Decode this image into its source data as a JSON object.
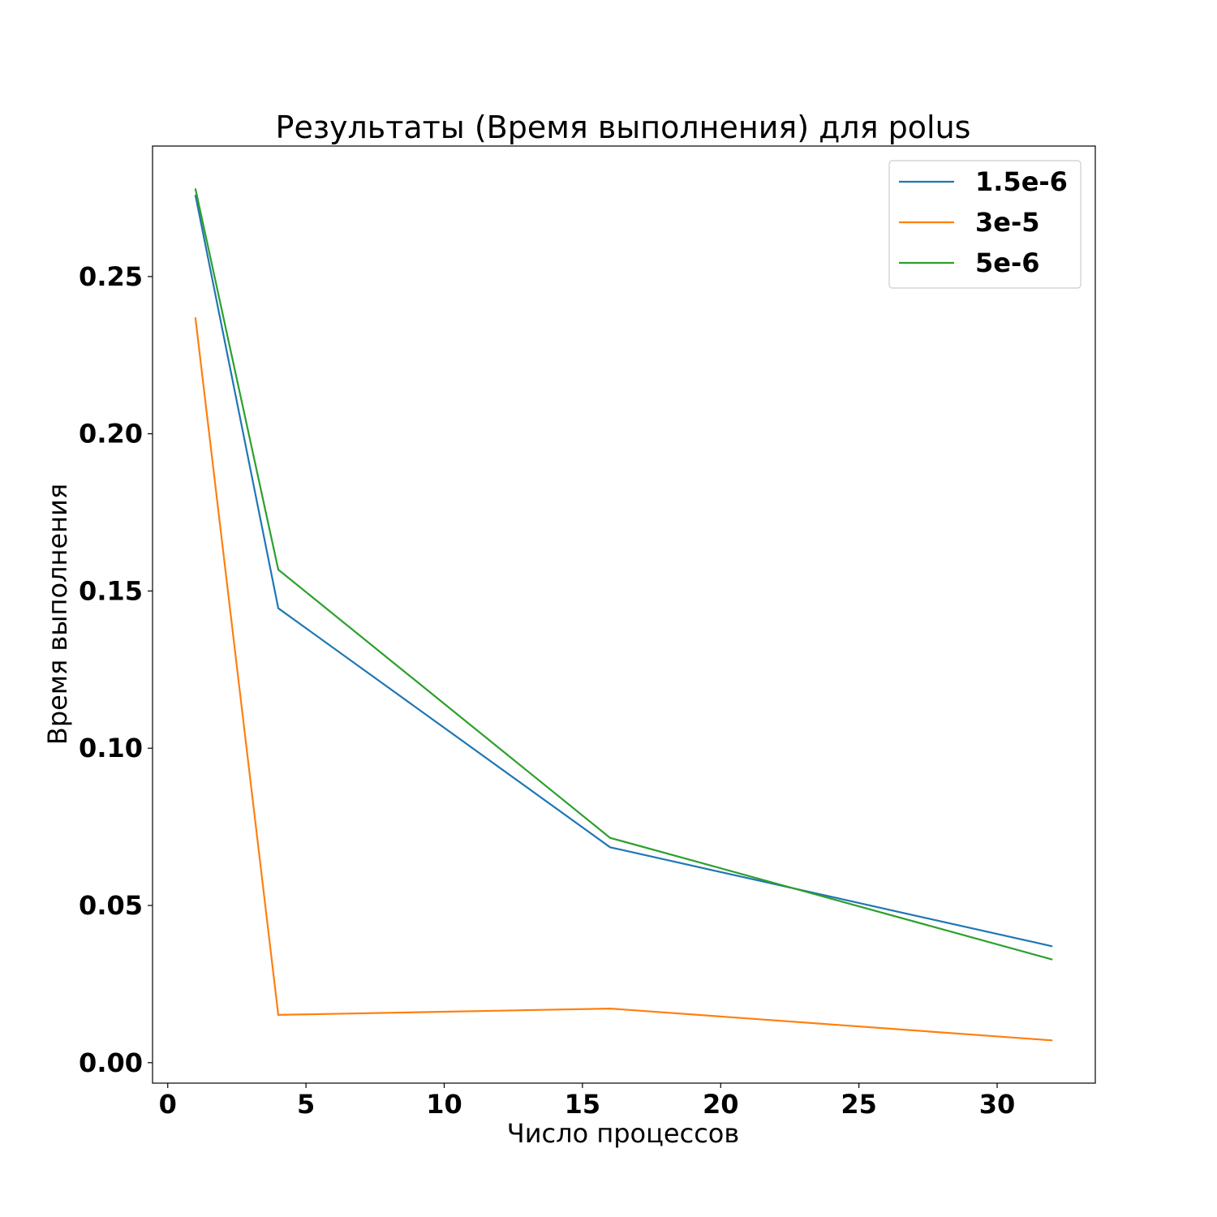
{
  "chart_data": {
    "type": "line",
    "title": "Результаты (Время выполнения) для polus",
    "xlabel": "Число процессов",
    "ylabel": "Время выполнения",
    "x": [
      1,
      4,
      16,
      32
    ],
    "series": [
      {
        "name": "1.5e-6",
        "color": "#1f77b4",
        "values": [
          0.276,
          0.1445,
          0.0685,
          0.037
        ]
      },
      {
        "name": "3e-5",
        "color": "#ff7f0e",
        "values": [
          0.237,
          0.0152,
          0.0172,
          0.0071
        ]
      },
      {
        "name": "5e-6",
        "color": "#2ca02c",
        "values": [
          0.278,
          0.1568,
          0.0715,
          0.0328
        ]
      }
    ],
    "xlim": [
      -0.55,
      33.55
    ],
    "ylim": [
      -0.0065,
      0.2915
    ],
    "xticks": [
      0,
      5,
      10,
      15,
      20,
      25,
      30
    ],
    "yticks": [
      0.0,
      0.05,
      0.1,
      0.15,
      0.2,
      0.25
    ],
    "ytick_labels": [
      "0.00",
      "0.05",
      "0.10",
      "0.15",
      "0.20",
      "0.25"
    ],
    "grid": false,
    "legend_position": "top-right"
  }
}
